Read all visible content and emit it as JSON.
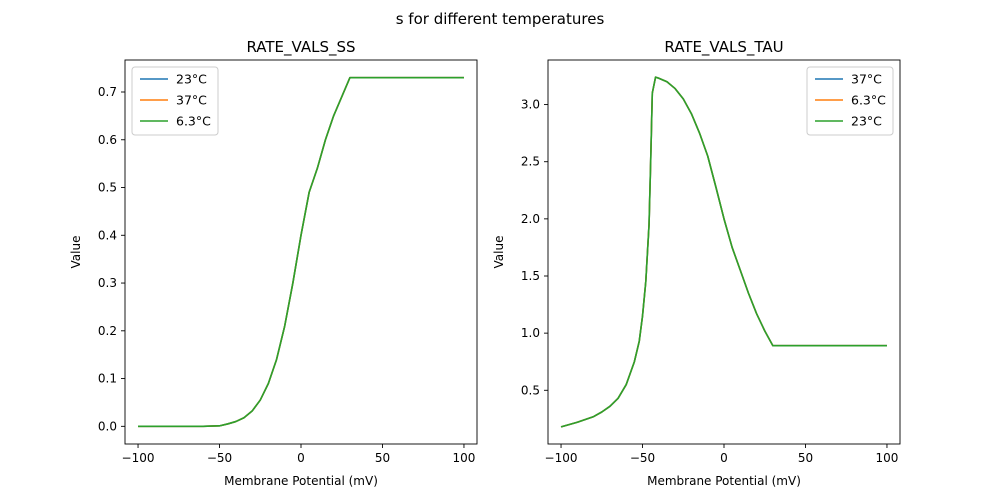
{
  "suptitle": "s for different temperatures",
  "chart_data": [
    {
      "type": "line",
      "title": "RATE_VALS_SS",
      "xlabel": "Membrane Potential (mV)",
      "ylabel": "Value",
      "xlim": [
        -108,
        108
      ],
      "ylim": [
        -0.037,
        0.767
      ],
      "xticks": [
        -100,
        -50,
        0,
        50,
        100
      ],
      "xtick_labels": [
        "−100",
        "−50",
        "0",
        "50",
        "100"
      ],
      "yticks": [
        0.0,
        0.1,
        0.2,
        0.3,
        0.4,
        0.5,
        0.6,
        0.7
      ],
      "ytick_labels": [
        "0.0",
        "0.1",
        "0.2",
        "0.3",
        "0.4",
        "0.5",
        "0.6",
        "0.7"
      ],
      "grid": false,
      "legend_position": "top-left",
      "x": [
        -100,
        -90,
        -80,
        -70,
        -60,
        -50,
        -45,
        -40,
        -35,
        -30,
        -25,
        -20,
        -15,
        -10,
        -5,
        0,
        5,
        10,
        15,
        20,
        25,
        30,
        40,
        50,
        60,
        70,
        80,
        90,
        100
      ],
      "series": [
        {
          "name": "23°C",
          "color": "#1f77b4",
          "values": [
            0.0,
            0.0,
            0.0,
            0.0,
            0.0,
            0.001,
            0.005,
            0.01,
            0.018,
            0.032,
            0.055,
            0.09,
            0.14,
            0.21,
            0.3,
            0.4,
            0.49,
            0.54,
            0.6,
            0.65,
            0.69,
            0.73,
            0.73,
            0.73,
            0.73,
            0.73,
            0.73,
            0.73,
            0.73
          ]
        },
        {
          "name": "37°C",
          "color": "#ff7f0e",
          "values": [
            0.0,
            0.0,
            0.0,
            0.0,
            0.0,
            0.001,
            0.005,
            0.01,
            0.018,
            0.032,
            0.055,
            0.09,
            0.14,
            0.21,
            0.3,
            0.4,
            0.49,
            0.54,
            0.6,
            0.65,
            0.69,
            0.73,
            0.73,
            0.73,
            0.73,
            0.73,
            0.73,
            0.73,
            0.73
          ]
        },
        {
          "name": "6.3°C",
          "color": "#2ca02c",
          "values": [
            0.0,
            0.0,
            0.0,
            0.0,
            0.0,
            0.001,
            0.005,
            0.01,
            0.018,
            0.032,
            0.055,
            0.09,
            0.14,
            0.21,
            0.3,
            0.4,
            0.49,
            0.54,
            0.6,
            0.65,
            0.69,
            0.73,
            0.73,
            0.73,
            0.73,
            0.73,
            0.73,
            0.73,
            0.73
          ]
        }
      ]
    },
    {
      "type": "line",
      "title": "RATE_VALS_TAU",
      "xlabel": "Membrane Potential (mV)",
      "ylabel": "Value",
      "xlim": [
        -108,
        108
      ],
      "ylim": [
        0.03,
        3.39
      ],
      "xticks": [
        -100,
        -50,
        0,
        50,
        100
      ],
      "xtick_labels": [
        "−100",
        "−50",
        "0",
        "50",
        "100"
      ],
      "yticks": [
        0.5,
        1.0,
        1.5,
        2.0,
        2.5,
        3.0
      ],
      "ytick_labels": [
        "0.5",
        "1.0",
        "1.5",
        "2.0",
        "2.5",
        "3.0"
      ],
      "grid": false,
      "legend_position": "top-right",
      "x": [
        -100,
        -90,
        -80,
        -75,
        -70,
        -65,
        -60,
        -55,
        -52,
        -50,
        -48,
        -46,
        -45,
        -44,
        -42,
        -40,
        -35,
        -30,
        -25,
        -20,
        -15,
        -10,
        -5,
        0,
        5,
        10,
        15,
        20,
        25,
        30,
        40,
        50,
        60,
        70,
        80,
        90,
        100
      ],
      "series": [
        {
          "name": "37°C",
          "color": "#1f77b4",
          "values": [
            0.18,
            0.22,
            0.27,
            0.31,
            0.36,
            0.43,
            0.55,
            0.75,
            0.93,
            1.15,
            1.45,
            1.95,
            2.5,
            3.1,
            3.24,
            3.23,
            3.2,
            3.14,
            3.05,
            2.92,
            2.75,
            2.55,
            2.28,
            2.0,
            1.75,
            1.55,
            1.35,
            1.17,
            1.02,
            0.89,
            0.89,
            0.89,
            0.89,
            0.89,
            0.89,
            0.89,
            0.89
          ]
        },
        {
          "name": "6.3°C",
          "color": "#ff7f0e",
          "values": [
            0.18,
            0.22,
            0.27,
            0.31,
            0.36,
            0.43,
            0.55,
            0.75,
            0.93,
            1.15,
            1.45,
            1.95,
            2.5,
            3.1,
            3.24,
            3.23,
            3.2,
            3.14,
            3.05,
            2.92,
            2.75,
            2.55,
            2.28,
            2.0,
            1.75,
            1.55,
            1.35,
            1.17,
            1.02,
            0.89,
            0.89,
            0.89,
            0.89,
            0.89,
            0.89,
            0.89,
            0.89
          ]
        },
        {
          "name": "23°C",
          "color": "#2ca02c",
          "values": [
            0.18,
            0.22,
            0.27,
            0.31,
            0.36,
            0.43,
            0.55,
            0.75,
            0.93,
            1.15,
            1.45,
            1.95,
            2.5,
            3.1,
            3.24,
            3.23,
            3.2,
            3.14,
            3.05,
            2.92,
            2.75,
            2.55,
            2.28,
            2.0,
            1.75,
            1.55,
            1.35,
            1.17,
            1.02,
            0.89,
            0.89,
            0.89,
            0.89,
            0.89,
            0.89,
            0.89,
            0.89
          ]
        }
      ]
    }
  ]
}
